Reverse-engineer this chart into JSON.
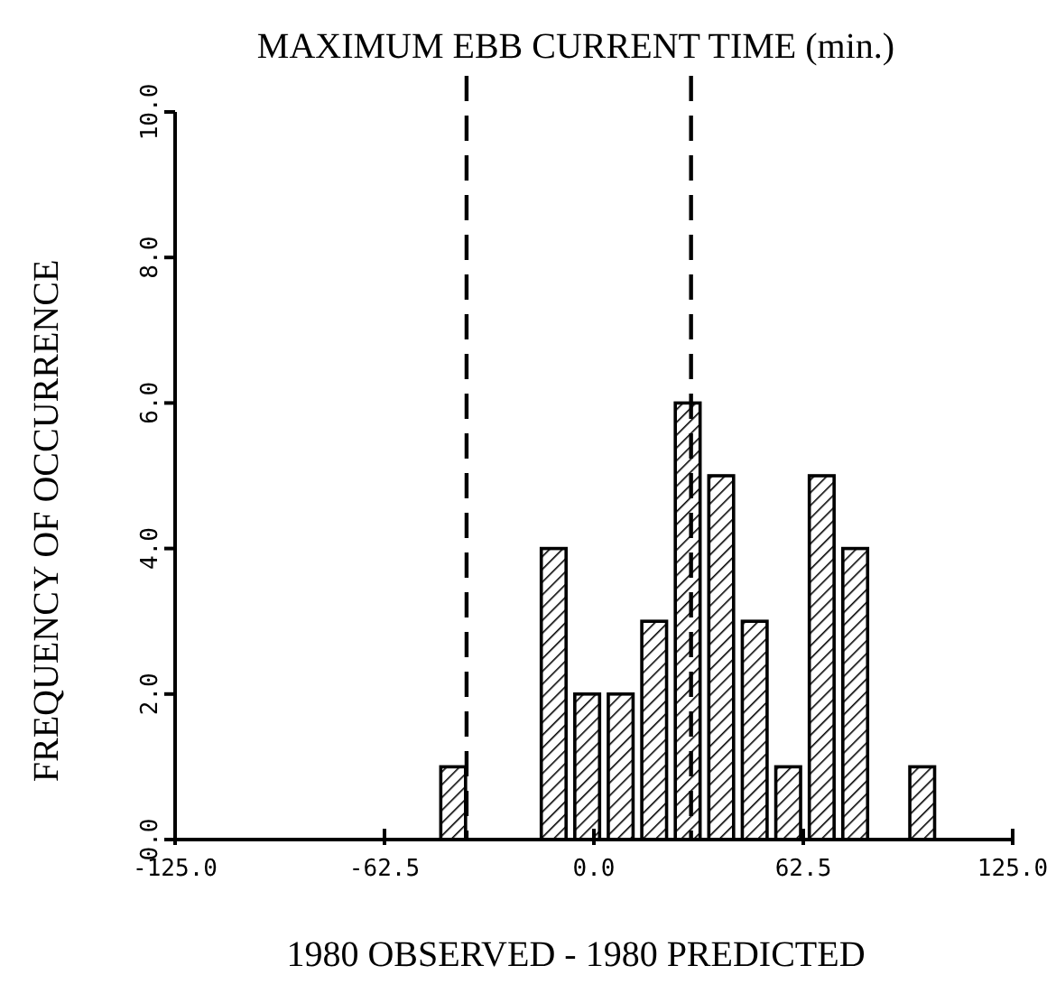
{
  "chart_data": {
    "type": "histogram",
    "title": "MAXIMUM EBB CURRENT TIME (min.)",
    "xlabel": "1980 OBSERVED - 1980 PREDICTED",
    "ylabel": "FREQUENCY OF OCCURRENCE",
    "bins": [
      -47,
      -37,
      -27,
      -17,
      -7,
      3,
      13,
      23,
      33,
      43,
      53,
      63,
      73,
      83,
      93,
      103
    ],
    "values": [
      1,
      0,
      0,
      4,
      2,
      2,
      3,
      6,
      5,
      3,
      1,
      5,
      4,
      0,
      1
    ],
    "color": "#000000",
    "xlim": [
      -125,
      125
    ],
    "xticks": [
      {
        "value": -125,
        "label": "-125.0"
      },
      {
        "value": -62.5,
        "label": "-62.5"
      },
      {
        "value": 0,
        "label": "0.0"
      },
      {
        "value": 62.5,
        "label": "62.5"
      },
      {
        "value": 125,
        "label": "125.0"
      }
    ],
    "ylim": [
      0,
      10
    ],
    "yticks": [
      {
        "value": 0,
        "label": "0.0"
      },
      {
        "value": 2,
        "label": "2.0"
      },
      {
        "value": 4,
        "label": "4.0"
      },
      {
        "value": 6,
        "label": "6.0"
      },
      {
        "value": 8,
        "label": "8.0"
      },
      {
        "value": 10,
        "label": "10.0"
      }
    ],
    "ref_lines": [
      {
        "axis": "x",
        "value": -38,
        "color": "#000000",
        "line_style": "dashed"
      },
      {
        "axis": "x",
        "value": 29,
        "color": "#000000",
        "line_style": "dashed"
      }
    ],
    "grid": false
  }
}
